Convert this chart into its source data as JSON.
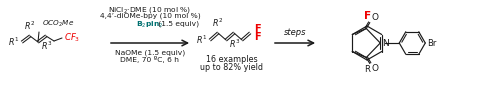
{
  "background": "#ffffff",
  "fig_width": 5.0,
  "fig_height": 0.9,
  "dpi": 100,
  "color_red": "#ee0000",
  "color_teal": "#007070",
  "color_black": "#1a1a1a",
  "reagent1": "NiCl$_2$·DME (10 mol %)",
  "reagent2": "4,4’-diOMe-bpy (10 mol %)",
  "reagent3_teal": "B$_2$pin$_2$",
  "reagent3_black": " (1.5 equiv)",
  "reagent4": "NaOMe (1.5 equiv)",
  "reagent5": "DME, 70 ºC, 6 h",
  "steps_text": "steps",
  "bottom1": "16 examples",
  "bottom2": "up to 82% yield"
}
